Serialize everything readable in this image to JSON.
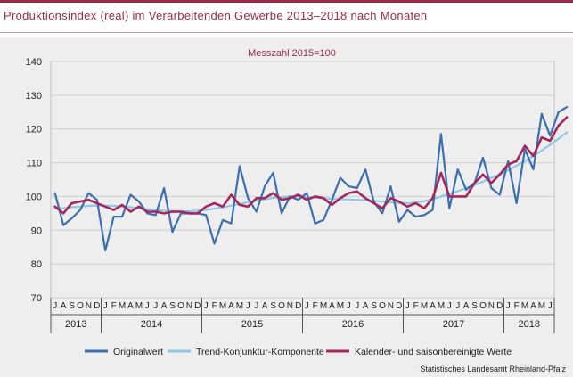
{
  "title": "Produktionsindex (real) im Verarbeitenden Gewerbe 2013–2018 nach Monaten",
  "source": "Statistisches Landesamt Rheinland-Pfalz",
  "colors": {
    "accent": "#9e2a45",
    "original": "#3b6fb0",
    "trend": "#8ec8e6",
    "adjusted": "#a4275c",
    "grid": "#cfcfcf",
    "panel": "#eeeeee"
  },
  "chart_data": {
    "type": "line",
    "title": "Messzahl 2015=100",
    "xlabel": "",
    "ylabel": "",
    "ylim": [
      70,
      140
    ],
    "yticks": [
      70,
      80,
      90,
      100,
      110,
      120,
      130,
      140
    ],
    "grid": true,
    "legend_position": "bottom",
    "month_labels": [
      "J",
      "A",
      "S",
      "O",
      "N",
      "D",
      "J",
      "F",
      "M",
      "A",
      "M",
      "J",
      "J",
      "A",
      "S",
      "O",
      "N",
      "D",
      "J",
      "F",
      "M",
      "A",
      "M",
      "J",
      "J",
      "A",
      "S",
      "O",
      "N",
      "D",
      "J",
      "F",
      "M",
      "A",
      "M",
      "J",
      "J",
      "A",
      "S",
      "O",
      "N",
      "D",
      "J",
      "F",
      "M",
      "A",
      "M",
      "J",
      "J",
      "A",
      "S",
      "O",
      "N",
      "D",
      "J",
      "F",
      "M",
      "A",
      "M",
      "J"
    ],
    "years": [
      {
        "label": "2013",
        "months": 6
      },
      {
        "label": "2014",
        "months": 12
      },
      {
        "label": "2015",
        "months": 12
      },
      {
        "label": "2016",
        "months": 12
      },
      {
        "label": "2017",
        "months": 12
      },
      {
        "label": "2018",
        "months": 6
      }
    ],
    "series": [
      {
        "name": "Originalwert",
        "color": "#3b6fb0",
        "values": [
          101,
          91.5,
          93.5,
          96,
          101,
          99,
          84,
          94,
          94,
          100.5,
          98.5,
          95,
          94.5,
          102.5,
          89.5,
          95,
          95,
          95,
          94.5,
          86,
          93,
          92,
          109,
          99.5,
          95.5,
          103,
          107,
          95,
          100,
          99,
          101,
          92,
          93,
          99,
          105.5,
          103,
          102.5,
          108,
          98.5,
          95,
          103,
          92.5,
          96,
          94,
          94.5,
          96,
          118.5,
          96.5,
          108,
          102,
          104,
          111.5,
          102.5,
          100.5,
          110.5,
          98,
          114,
          108,
          124.5,
          118,
          125,
          126.5
        ]
      },
      {
        "name": "Trend-Konjunktur-Komponente",
        "color": "#8ec8e6",
        "values": [
          96.5,
          96.5,
          96.8,
          97,
          97.2,
          97.3,
          97.3,
          97.2,
          97,
          96.8,
          96.5,
          96.2,
          96,
          95.8,
          95.7,
          95.6,
          95.6,
          95.8,
          96,
          96.4,
          96.8,
          97.3,
          97.8,
          98.3,
          98.8,
          99.2,
          99.6,
          99.8,
          100,
          100,
          99.9,
          99.7,
          99.5,
          99.3,
          99.2,
          99.1,
          99,
          98.9,
          98.7,
          98.5,
          98.3,
          98.1,
          98,
          98.2,
          98.6,
          99.2,
          100,
          100.8,
          101.6,
          102.5,
          103.4,
          104.4,
          105.5,
          106.6,
          107.8,
          109.1,
          110.5,
          112,
          113.6,
          115.3,
          117.1,
          119
        ]
      },
      {
        "name": "Kalender- und saisonbereinigte Werte",
        "color": "#a4275c",
        "values": [
          97,
          95,
          98,
          98.5,
          99,
          98,
          97,
          96,
          97.5,
          95.5,
          97,
          95.5,
          95.5,
          95,
          95.5,
          95.5,
          95,
          95,
          97,
          98,
          97,
          100.5,
          97.5,
          97,
          99.5,
          99.5,
          101,
          99,
          99.5,
          100.5,
          99,
          100,
          99.5,
          97.5,
          99.5,
          101,
          101.5,
          99.5,
          98,
          96.5,
          99.5,
          98.5,
          97,
          98,
          96.5,
          99.5,
          107,
          100,
          100,
          100,
          104,
          106.5,
          104,
          106.5,
          109.5,
          110.5,
          115,
          112,
          117.5,
          116.5,
          121,
          123.5
        ]
      }
    ]
  }
}
